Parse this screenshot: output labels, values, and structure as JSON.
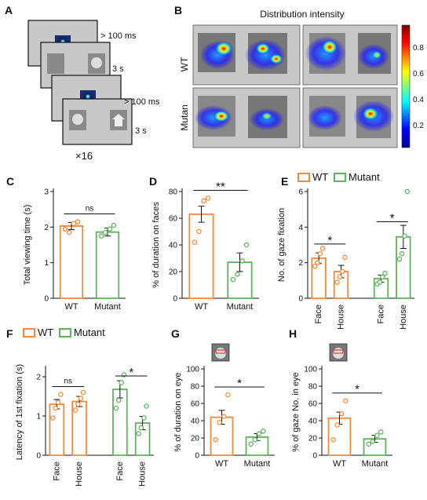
{
  "colors": {
    "wt": "#f08a3c",
    "mutant": "#5fb35f",
    "screen": "#c8c8c8"
  },
  "panel_a": {
    "label": "A",
    "timings": [
      "> 100 ms",
      "3 s",
      "> 100 ms",
      "3 s"
    ],
    "repeat": "×16"
  },
  "panel_b": {
    "label": "B",
    "title": "Distribution intensity",
    "rows": [
      "WT",
      "Mutan"
    ],
    "colorbar_ticks": [
      "0.8",
      "0.6",
      "0.4",
      "0.2"
    ]
  },
  "chart_data": [
    {
      "panel": "C",
      "type": "bar",
      "categories": [
        "WT",
        "Mutant"
      ],
      "values": [
        2.03,
        1.86
      ],
      "errors": [
        0.1,
        0.11
      ],
      "points": [
        [
          1.95,
          1.85,
          2.1,
          2.15
        ],
        [
          1.75,
          1.85,
          1.95,
          2.05
        ]
      ],
      "ylabel": "Total viewing time (s)",
      "ylim": [
        0,
        3
      ],
      "yticks": [
        0,
        1,
        2,
        3
      ],
      "annotations": [
        {
          "text": "ns",
          "from": 0,
          "to": 1
        }
      ]
    },
    {
      "panel": "D",
      "type": "bar",
      "categories": [
        "WT",
        "Mutant"
      ],
      "values": [
        63,
        27
      ],
      "errors": [
        6,
        7
      ],
      "points": [
        [
          42,
          50,
          73,
          75
        ],
        [
          14,
          18,
          28,
          40
        ]
      ],
      "ylabel": "% of duration on faces",
      "ylim": [
        0,
        80
      ],
      "yticks": [
        0,
        20,
        40,
        60,
        80
      ],
      "annotations": [
        {
          "text": "**",
          "from": 0,
          "to": 1
        }
      ]
    },
    {
      "panel": "E",
      "type": "bar",
      "categories": [
        "Face",
        "House",
        "Face",
        "House"
      ],
      "groups": [
        "WT",
        "WT",
        "Mutant",
        "Mutant"
      ],
      "legend": [
        "WT",
        "Mutant"
      ],
      "values": [
        2.25,
        1.5,
        1.1,
        3.45
      ],
      "errors": [
        0.3,
        0.35,
        0.2,
        0.65
      ],
      "points": [
        [
          1.8,
          2.0,
          2.5,
          2.8
        ],
        [
          0.9,
          1.2,
          1.5,
          2.3
        ],
        [
          0.8,
          0.9,
          1.2,
          1.4
        ],
        [
          2.2,
          2.5,
          3.5,
          6.0
        ]
      ],
      "ylabel": "No. of gaze fixation",
      "ylim": [
        0,
        6
      ],
      "yticks": [
        0,
        2,
        4,
        6
      ],
      "annotations": [
        {
          "text": "*",
          "from": 0,
          "to": 1
        },
        {
          "text": "*",
          "from": 2,
          "to": 3
        }
      ]
    },
    {
      "panel": "F",
      "type": "bar",
      "categories": [
        "Face",
        "House",
        "Face",
        "House"
      ],
      "groups": [
        "WT",
        "WT",
        "Mutant",
        "Mutant"
      ],
      "legend": [
        "WT",
        "Mutant"
      ],
      "values": [
        1.3,
        1.37,
        1.68,
        0.82
      ],
      "errors": [
        0.12,
        0.13,
        0.22,
        0.17
      ],
      "points": [
        [
          0.95,
          1.2,
          1.35,
          1.55
        ],
        [
          1.15,
          1.3,
          1.45,
          1.6
        ],
        [
          1.2,
          1.4,
          1.85,
          2.05
        ],
        [
          0.55,
          0.7,
          0.95,
          1.25
        ]
      ],
      "ylabel": "Latency of 1st fixation (s)",
      "ylim": [
        0,
        2.2
      ],
      "yticks": [
        0,
        1,
        2
      ],
      "annotations": [
        {
          "text": "ns",
          "from": 0,
          "to": 1
        },
        {
          "text": "*",
          "from": 2,
          "to": 3
        }
      ]
    },
    {
      "panel": "G",
      "type": "bar",
      "categories": [
        "WT",
        "Mutant"
      ],
      "values": [
        44,
        21
      ],
      "errors": [
        8,
        4
      ],
      "points": [
        [
          18,
          38,
          45,
          70
        ],
        [
          13,
          18,
          25,
          28
        ]
      ],
      "ylabel": "% of duration on eye",
      "ylim": [
        0,
        100
      ],
      "yticks": [
        0,
        20,
        40,
        60,
        80,
        100
      ],
      "annotations": [
        {
          "text": "*",
          "from": 0,
          "to": 1
        }
      ]
    },
    {
      "panel": "H",
      "type": "bar",
      "categories": [
        "WT",
        "Mutant"
      ],
      "values": [
        43,
        19
      ],
      "errors": [
        7,
        4
      ],
      "points": [
        [
          18,
          35,
          48,
          63
        ],
        [
          13,
          16,
          23,
          27
        ]
      ],
      "ylabel": "% of gaze No. in eye",
      "ylim": [
        0,
        100
      ],
      "yticks": [
        0,
        20,
        40,
        60,
        80,
        100
      ],
      "annotations": [
        {
          "text": "*",
          "from": 0,
          "to": 1
        }
      ]
    }
  ]
}
